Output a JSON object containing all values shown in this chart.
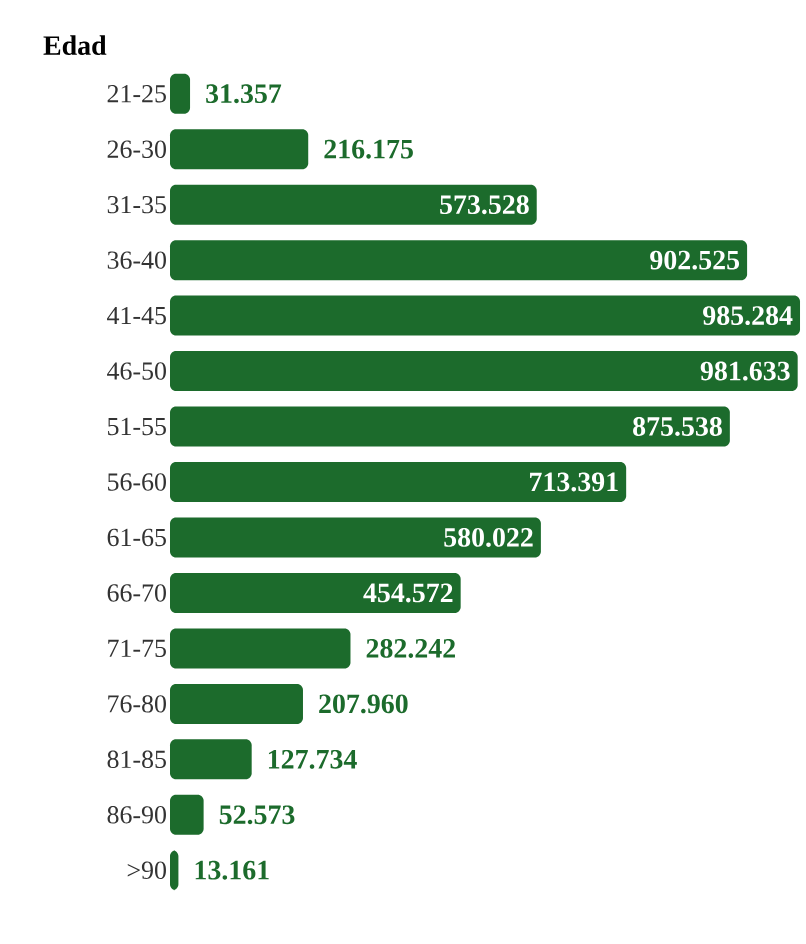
{
  "chart_data": {
    "type": "bar",
    "orientation": "horizontal",
    "ylabel": "Edad",
    "categories": [
      "21-25",
      "26-30",
      "31-35",
      "36-40",
      "41-45",
      "46-50",
      "51-55",
      "56-60",
      "61-65",
      "66-70",
      "71-75",
      "76-80",
      "81-85",
      "86-90",
      ">90"
    ],
    "values": [
      31357,
      216175,
      573528,
      902525,
      985284,
      981633,
      875538,
      713391,
      580022,
      454572,
      282242,
      207960,
      127734,
      52573,
      13161
    ],
    "value_labels": [
      "31.357",
      "216.175",
      "573.528",
      "902.525",
      "985.284",
      "981.633",
      "875.538",
      "713.391",
      "580.022",
      "454.572",
      "282.242",
      "207.960",
      "127.734",
      "52.573",
      "13.161"
    ],
    "color": "#1c6b2c"
  }
}
